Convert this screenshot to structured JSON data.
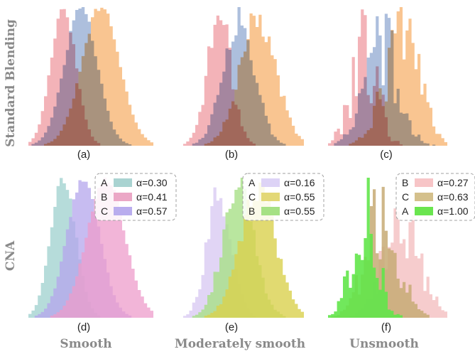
{
  "row_labels": {
    "top": "Standard Blending",
    "bottom": "CNA"
  },
  "col_labels": [
    "Smooth",
    "Moderately smooth",
    "Unsmooth"
  ],
  "panel_labels": [
    "(a)",
    "(b)",
    "(c)",
    "(d)",
    "(e)",
    "(f)"
  ],
  "chart_data": [
    {
      "type": "histogram",
      "panel": "(a)",
      "blend": "standard",
      "series": [
        {
          "mean": 0.28,
          "sd": 0.1,
          "jitter": 0.04,
          "color": "#ef9aa0",
          "alpha": 0.75
        },
        {
          "mean": 0.42,
          "sd": 0.13,
          "jitter": 0.03,
          "color": "#92aad2",
          "alpha": 0.75
        },
        {
          "mean": 0.58,
          "sd": 0.15,
          "jitter": 0.03,
          "color": "#f7b26c",
          "alpha": 0.75
        }
      ]
    },
    {
      "type": "histogram",
      "panel": "(b)",
      "blend": "standard",
      "series": [
        {
          "mean": 0.3,
          "sd": 0.1,
          "jitter": 0.18,
          "color": "#ef9aa0",
          "alpha": 0.75
        },
        {
          "mean": 0.46,
          "sd": 0.13,
          "jitter": 0.16,
          "color": "#92aad2",
          "alpha": 0.75
        },
        {
          "mean": 0.62,
          "sd": 0.15,
          "jitter": 0.14,
          "color": "#f7b26c",
          "alpha": 0.75
        }
      ]
    },
    {
      "type": "histogram",
      "panel": "(c)",
      "blend": "standard",
      "series": [
        {
          "mean": 0.3,
          "sd": 0.11,
          "jitter": 0.55,
          "color": "#ef9aa0",
          "alpha": 0.75
        },
        {
          "mean": 0.45,
          "sd": 0.14,
          "jitter": 0.45,
          "color": "#92aad2",
          "alpha": 0.75
        },
        {
          "mean": 0.62,
          "sd": 0.15,
          "jitter": 0.45,
          "color": "#f7b26c",
          "alpha": 0.75
        }
      ]
    },
    {
      "type": "histogram",
      "panel": "(d)",
      "blend": "cna",
      "legend": [
        {
          "label": "A",
          "alpha_text": "α=0.30"
        },
        {
          "label": "B",
          "alpha_text": "α=0.41"
        },
        {
          "label": "C",
          "alpha_text": "α=0.57"
        }
      ],
      "series": [
        {
          "mean": 0.28,
          "sd": 0.1,
          "jitter": 0.04,
          "color": "#9dd0cd",
          "alpha": 0.75
        },
        {
          "mean": 0.44,
          "sd": 0.13,
          "jitter": 0.03,
          "color": "#b4a6ec",
          "alpha": 0.75
        },
        {
          "mean": 0.62,
          "sd": 0.15,
          "jitter": 0.03,
          "color": "#ee9ccb",
          "alpha": 0.75
        }
      ]
    },
    {
      "type": "histogram",
      "panel": "(e)",
      "blend": "cna",
      "legend": [
        {
          "label": "A",
          "alpha_text": "α=0.16"
        },
        {
          "label": "C",
          "alpha_text": "α=0.55"
        },
        {
          "label": "B",
          "alpha_text": "α=0.55"
        }
      ],
      "series": [
        {
          "mean": 0.3,
          "sd": 0.1,
          "jitter": 0.18,
          "color": "#d9cbf3",
          "alpha": 0.8
        },
        {
          "mean": 0.46,
          "sd": 0.13,
          "jitter": 0.16,
          "color": "#a8e087",
          "alpha": 0.8
        },
        {
          "mean": 0.62,
          "sd": 0.15,
          "jitter": 0.14,
          "color": "#d9d14e",
          "alpha": 0.8
        }
      ]
    },
    {
      "type": "histogram",
      "panel": "(f)",
      "blend": "cna",
      "legend": [
        {
          "label": "B",
          "alpha_text": "α=0.27"
        },
        {
          "label": "C",
          "alpha_text": "α=0.63"
        },
        {
          "label": "A",
          "alpha_text": "α=1.00"
        }
      ],
      "series": [
        {
          "mean": 0.62,
          "sd": 0.15,
          "jitter": 0.45,
          "color": "#f5c7c8",
          "alpha": 0.9
        },
        {
          "mean": 0.45,
          "sd": 0.14,
          "jitter": 0.45,
          "color": "#c7aa74",
          "alpha": 0.85
        },
        {
          "mean": 0.3,
          "sd": 0.11,
          "jitter": 0.55,
          "color": "#62e54a",
          "alpha": 0.9
        }
      ]
    }
  ],
  "legend_swatch_colors": {
    "d": [
      "#a9d3d1",
      "#eba7c6",
      "#b9adee"
    ],
    "e": [
      "#ddd3f6",
      "#e3d877",
      "#a6e184"
    ],
    "f": [
      "#f7c5c7",
      "#d4c08c",
      "#6ae54f"
    ]
  }
}
